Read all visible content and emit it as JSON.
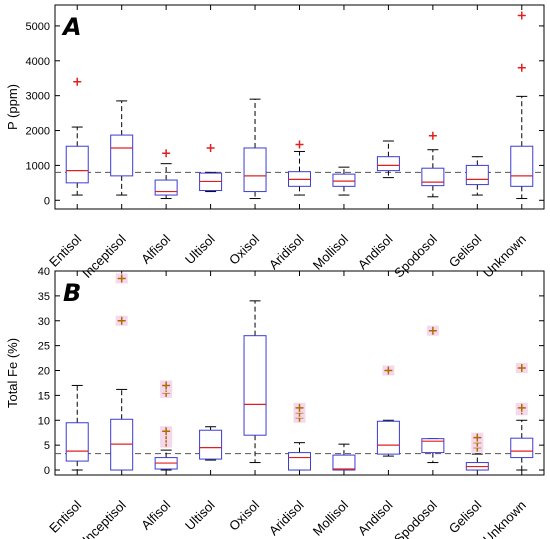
{
  "colors": {
    "box": "#3b3bd6",
    "median": "#e02020",
    "whisker": "#000000",
    "outlier_top": "#e02020",
    "outlier_bottom": "#b26a00",
    "outlier_halo": "#f4d9ee",
    "reference": "#555555"
  },
  "chart_data": [
    {
      "type": "box",
      "panel_label": "A",
      "ylabel": "P (ppm)",
      "ylim": [
        -250,
        5600
      ],
      "yticks": [
        0,
        1000,
        2000,
        3000,
        4000,
        5000
      ],
      "reference_line": 800,
      "categories": [
        "Entisol",
        "Inceptisol",
        "Alfisol",
        "Ultisol",
        "Oxisol",
        "Aridisol",
        "Mollisol",
        "Andisol",
        "Spodosol",
        "Gelisol",
        "Unknown"
      ],
      "boxes": [
        {
          "lw": 150,
          "q1": 500,
          "median": 850,
          "q3": 1550,
          "uw": 2100,
          "outliers": [
            3400
          ]
        },
        {
          "lw": 150,
          "q1": 700,
          "median": 1500,
          "q3": 1870,
          "uw": 2850,
          "outliers": []
        },
        {
          "lw": 50,
          "q1": 150,
          "median": 250,
          "q3": 580,
          "uw": 1050,
          "outliers": [
            1350
          ]
        },
        {
          "lw": 250,
          "q1": 280,
          "median": 540,
          "q3": 780,
          "uw": 800,
          "outliers": [
            1500
          ]
        },
        {
          "lw": 50,
          "q1": 250,
          "median": 700,
          "q3": 1500,
          "uw": 2900,
          "outliers": []
        },
        {
          "lw": 150,
          "q1": 400,
          "median": 600,
          "q3": 820,
          "uw": 1400,
          "outliers": [
            1600
          ]
        },
        {
          "lw": 150,
          "q1": 400,
          "median": 550,
          "q3": 750,
          "uw": 950,
          "outliers": []
        },
        {
          "lw": 650,
          "q1": 850,
          "median": 1000,
          "q3": 1250,
          "uw": 1700,
          "outliers": []
        },
        {
          "lw": 100,
          "q1": 420,
          "median": 520,
          "q3": 920,
          "uw": 1450,
          "outliers": [
            1850
          ]
        },
        {
          "lw": 150,
          "q1": 450,
          "median": 600,
          "q3": 1000,
          "uw": 1250,
          "outliers": []
        },
        {
          "lw": 50,
          "q1": 400,
          "median": 700,
          "q3": 1550,
          "uw": 2980,
          "outliers": [
            3800,
            5300
          ]
        }
      ]
    },
    {
      "type": "box",
      "panel_label": "B",
      "ylabel": "Total Fe (%)",
      "ylim": [
        -1,
        40
      ],
      "yticks": [
        0,
        5,
        10,
        15,
        20,
        25,
        30,
        35,
        40
      ],
      "reference_line": 3.3,
      "categories": [
        "Entisol",
        "Inceptisol",
        "Alfisol",
        "Ultisol",
        "Oxisol",
        "Aridisol",
        "Mollisol",
        "Andisol",
        "Spodosol",
        "Gelisol",
        "Unknown"
      ],
      "boxes": [
        {
          "lw": 0,
          "q1": 1.8,
          "median": 3.8,
          "q3": 9.5,
          "uw": 17,
          "outliers": []
        },
        {
          "lw": 0,
          "q1": 0,
          "median": 5.2,
          "q3": 10.2,
          "uw": 16.2,
          "outliers": [
            30,
            38.5
          ]
        },
        {
          "lw": 0,
          "q1": 0.2,
          "median": 1.4,
          "q3": 2.5,
          "uw": 4,
          "outliers": [
            5.5,
            6.3,
            7,
            7.8,
            15.5,
            16.5,
            17
          ]
        },
        {
          "lw": 2,
          "q1": 2.2,
          "median": 4.5,
          "q3": 8,
          "uw": 8.7,
          "outliers": []
        },
        {
          "lw": 1.5,
          "q1": 7,
          "median": 13.2,
          "q3": 27,
          "uw": 34,
          "outliers": []
        },
        {
          "lw": 0,
          "q1": 0,
          "median": 2.5,
          "q3": 3.5,
          "uw": 5.5,
          "outliers": [
            10.5,
            11.5,
            12.5
          ]
        },
        {
          "lw": 0,
          "q1": 0,
          "median": 0.2,
          "q3": 3,
          "uw": 5.2,
          "outliers": []
        },
        {
          "lw": 2.8,
          "q1": 3.2,
          "median": 5,
          "q3": 9.8,
          "uw": 10,
          "outliers": [
            20
          ]
        },
        {
          "lw": 1.5,
          "q1": 3.5,
          "median": 5.8,
          "q3": 6.3,
          "uw": 6.3,
          "outliers": [
            28
          ]
        },
        {
          "lw": 0,
          "q1": 0,
          "median": 0.7,
          "q3": 1.5,
          "uw": 3.2,
          "outliers": [
            4.5,
            5.5,
            6.5
          ]
        },
        {
          "lw": 0,
          "q1": 2.5,
          "median": 3.8,
          "q3": 6.4,
          "uw": 10,
          "outliers": [
            12,
            12.5,
            20.5
          ]
        }
      ]
    }
  ]
}
